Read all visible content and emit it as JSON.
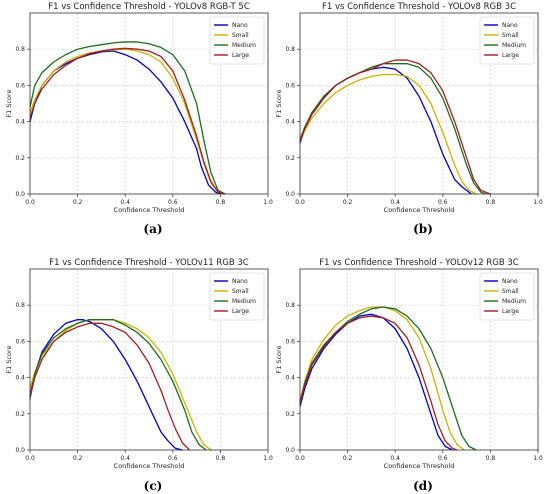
{
  "colors": {
    "Nano": "#0000cc",
    "Small": "#c8b400",
    "Medium": "#1f6b1f",
    "Large": "#a02020"
  },
  "chart_data": [
    {
      "type": "line",
      "title": "F1 vs Confidence Threshold - YOLOv8 RGB-T 5C",
      "xlabel": "Confidence Threshold",
      "ylabel": "F1 Score",
      "xlim": [
        0,
        1
      ],
      "ylim": [
        0,
        1
      ],
      "xticks": [
        "0.0",
        "0.2",
        "0.4",
        "0.6",
        "0.8",
        "1.0"
      ],
      "yticks": [
        "0.0",
        "0.2",
        "0.4",
        "0.6",
        "0.8"
      ],
      "grid": true,
      "legend": "top-right",
      "caption": "(a)",
      "series": [
        {
          "name": "Nano",
          "x": [
            0,
            0.02,
            0.05,
            0.1,
            0.15,
            0.2,
            0.25,
            0.3,
            0.35,
            0.4,
            0.45,
            0.5,
            0.55,
            0.6,
            0.65,
            0.7,
            0.72,
            0.75,
            0.78,
            0.8
          ],
          "y": [
            0.4,
            0.5,
            0.6,
            0.68,
            0.72,
            0.75,
            0.77,
            0.785,
            0.79,
            0.77,
            0.74,
            0.69,
            0.62,
            0.53,
            0.4,
            0.25,
            0.15,
            0.05,
            0.01,
            0
          ]
        },
        {
          "name": "Small",
          "x": [
            0,
            0.02,
            0.05,
            0.1,
            0.15,
            0.2,
            0.25,
            0.3,
            0.35,
            0.4,
            0.45,
            0.5,
            0.55,
            0.6,
            0.65,
            0.7,
            0.73,
            0.76,
            0.79,
            0.82
          ],
          "y": [
            0.45,
            0.52,
            0.6,
            0.68,
            0.73,
            0.76,
            0.78,
            0.79,
            0.795,
            0.8,
            0.79,
            0.77,
            0.73,
            0.64,
            0.5,
            0.3,
            0.17,
            0.06,
            0.01,
            0
          ]
        },
        {
          "name": "Medium",
          "x": [
            0,
            0.02,
            0.05,
            0.1,
            0.15,
            0.2,
            0.25,
            0.3,
            0.35,
            0.4,
            0.45,
            0.5,
            0.55,
            0.6,
            0.65,
            0.7,
            0.73,
            0.76,
            0.79,
            0.82
          ],
          "y": [
            0.48,
            0.6,
            0.67,
            0.73,
            0.77,
            0.8,
            0.815,
            0.825,
            0.835,
            0.84,
            0.84,
            0.83,
            0.81,
            0.77,
            0.68,
            0.5,
            0.3,
            0.12,
            0.02,
            0
          ]
        },
        {
          "name": "Large",
          "x": [
            0,
            0.02,
            0.05,
            0.1,
            0.15,
            0.2,
            0.25,
            0.3,
            0.35,
            0.4,
            0.45,
            0.5,
            0.55,
            0.6,
            0.65,
            0.7,
            0.73,
            0.76,
            0.79,
            0.82
          ],
          "y": [
            0.42,
            0.5,
            0.58,
            0.66,
            0.71,
            0.75,
            0.775,
            0.79,
            0.8,
            0.805,
            0.8,
            0.79,
            0.76,
            0.68,
            0.52,
            0.32,
            0.18,
            0.07,
            0.01,
            0
          ]
        }
      ]
    },
    {
      "type": "line",
      "title": "F1 vs Confidence Threshold - YOLOv8 RGB 3C",
      "xlabel": "Confidence Threshold",
      "ylabel": "F1 Score",
      "xlim": [
        0,
        1
      ],
      "ylim": [
        0,
        1
      ],
      "xticks": [
        "0.0",
        "0.2",
        "0.4",
        "0.6",
        "0.8",
        "1.0"
      ],
      "yticks": [
        "0.0",
        "0.2",
        "0.4",
        "0.6",
        "0.8"
      ],
      "grid": true,
      "legend": "top-right",
      "caption": "(b)",
      "series": [
        {
          "name": "Nano",
          "x": [
            0,
            0.02,
            0.05,
            0.1,
            0.15,
            0.2,
            0.25,
            0.3,
            0.35,
            0.4,
            0.45,
            0.5,
            0.55,
            0.6,
            0.65,
            0.68,
            0.7,
            0.72
          ],
          "y": [
            0.28,
            0.36,
            0.44,
            0.53,
            0.6,
            0.64,
            0.67,
            0.69,
            0.7,
            0.69,
            0.64,
            0.54,
            0.4,
            0.22,
            0.08,
            0.04,
            0.02,
            0
          ]
        },
        {
          "name": "Small",
          "x": [
            0,
            0.02,
            0.05,
            0.1,
            0.15,
            0.2,
            0.25,
            0.3,
            0.35,
            0.4,
            0.45,
            0.5,
            0.55,
            0.6,
            0.65,
            0.68,
            0.71,
            0.74
          ],
          "y": [
            0.29,
            0.35,
            0.42,
            0.5,
            0.56,
            0.6,
            0.63,
            0.65,
            0.66,
            0.66,
            0.65,
            0.6,
            0.5,
            0.34,
            0.16,
            0.07,
            0.02,
            0
          ]
        },
        {
          "name": "Medium",
          "x": [
            0,
            0.02,
            0.05,
            0.1,
            0.15,
            0.2,
            0.25,
            0.3,
            0.35,
            0.4,
            0.45,
            0.5,
            0.55,
            0.6,
            0.65,
            0.7,
            0.73,
            0.76,
            0.78
          ],
          "y": [
            0.3,
            0.37,
            0.45,
            0.54,
            0.6,
            0.64,
            0.67,
            0.7,
            0.72,
            0.72,
            0.72,
            0.7,
            0.64,
            0.53,
            0.36,
            0.16,
            0.06,
            0.01,
            0
          ]
        },
        {
          "name": "Large",
          "x": [
            0,
            0.02,
            0.05,
            0.1,
            0.15,
            0.2,
            0.25,
            0.3,
            0.35,
            0.4,
            0.45,
            0.5,
            0.55,
            0.6,
            0.65,
            0.7,
            0.73,
            0.76,
            0.8
          ],
          "y": [
            0.29,
            0.36,
            0.44,
            0.53,
            0.6,
            0.64,
            0.67,
            0.69,
            0.72,
            0.74,
            0.74,
            0.72,
            0.67,
            0.57,
            0.4,
            0.2,
            0.08,
            0.02,
            0
          ]
        }
      ]
    },
    {
      "type": "line",
      "title": "F1 vs Confidence Threshold - YOLOv11 RGB 3C",
      "xlabel": "Confidence Threshold",
      "ylabel": "F1 Score",
      "xlim": [
        0,
        1
      ],
      "ylim": [
        0,
        1
      ],
      "xticks": [
        "0.0",
        "0.2",
        "0.4",
        "0.6",
        "0.8",
        "1.0"
      ],
      "yticks": [
        "0.0",
        "0.2",
        "0.4",
        "0.6",
        "0.8"
      ],
      "grid": true,
      "legend": "top-right",
      "caption": "(c)",
      "series": [
        {
          "name": "Nano",
          "x": [
            0,
            0.02,
            0.05,
            0.1,
            0.15,
            0.2,
            0.22,
            0.25,
            0.3,
            0.35,
            0.4,
            0.45,
            0.5,
            0.55,
            0.58,
            0.61,
            0.64
          ],
          "y": [
            0.3,
            0.42,
            0.54,
            0.64,
            0.7,
            0.72,
            0.72,
            0.71,
            0.67,
            0.6,
            0.5,
            0.38,
            0.24,
            0.1,
            0.05,
            0.01,
            0
          ]
        },
        {
          "name": "Small",
          "x": [
            0,
            0.02,
            0.05,
            0.1,
            0.15,
            0.2,
            0.25,
            0.3,
            0.35,
            0.4,
            0.45,
            0.5,
            0.55,
            0.6,
            0.65,
            0.7,
            0.73,
            0.76
          ],
          "y": [
            0.34,
            0.43,
            0.52,
            0.6,
            0.66,
            0.7,
            0.72,
            0.72,
            0.72,
            0.7,
            0.67,
            0.62,
            0.54,
            0.42,
            0.26,
            0.1,
            0.03,
            0
          ]
        },
        {
          "name": "Medium",
          "x": [
            0,
            0.02,
            0.05,
            0.1,
            0.15,
            0.2,
            0.25,
            0.3,
            0.35,
            0.4,
            0.45,
            0.5,
            0.55,
            0.6,
            0.65,
            0.68,
            0.71,
            0.74
          ],
          "y": [
            0.28,
            0.42,
            0.53,
            0.62,
            0.67,
            0.7,
            0.72,
            0.72,
            0.72,
            0.69,
            0.65,
            0.59,
            0.5,
            0.38,
            0.22,
            0.1,
            0.03,
            0
          ]
        },
        {
          "name": "Large",
          "x": [
            0,
            0.02,
            0.05,
            0.1,
            0.15,
            0.2,
            0.25,
            0.3,
            0.35,
            0.4,
            0.45,
            0.5,
            0.55,
            0.58,
            0.61,
            0.64,
            0.67
          ],
          "y": [
            0.29,
            0.4,
            0.5,
            0.6,
            0.65,
            0.68,
            0.7,
            0.7,
            0.68,
            0.65,
            0.58,
            0.48,
            0.33,
            0.22,
            0.12,
            0.04,
            0
          ]
        }
      ]
    },
    {
      "type": "line",
      "title": "F1 vs Confidence Threshold - YOLOv12 RGB 3C",
      "xlabel": "Confidence Threshold",
      "ylabel": "F1 Score",
      "xlim": [
        0,
        1
      ],
      "ylim": [
        0,
        1
      ],
      "xticks": [
        "0.0",
        "0.2",
        "0.4",
        "0.6",
        "0.8",
        "1.0"
      ],
      "yticks": [
        "0.0",
        "0.2",
        "0.4",
        "0.6",
        "0.8"
      ],
      "grid": true,
      "legend": "top-right",
      "caption": "(d)",
      "series": [
        {
          "name": "Nano",
          "x": [
            0,
            0.02,
            0.05,
            0.1,
            0.15,
            0.2,
            0.25,
            0.3,
            0.35,
            0.4,
            0.45,
            0.5,
            0.55,
            0.58,
            0.61,
            0.64
          ],
          "y": [
            0.24,
            0.34,
            0.45,
            0.56,
            0.64,
            0.7,
            0.74,
            0.75,
            0.73,
            0.67,
            0.56,
            0.4,
            0.2,
            0.08,
            0.02,
            0
          ]
        },
        {
          "name": "Small",
          "x": [
            0,
            0.02,
            0.05,
            0.1,
            0.15,
            0.2,
            0.25,
            0.3,
            0.35,
            0.4,
            0.45,
            0.5,
            0.55,
            0.6,
            0.63,
            0.66,
            0.69
          ],
          "y": [
            0.27,
            0.38,
            0.5,
            0.61,
            0.69,
            0.74,
            0.77,
            0.79,
            0.79,
            0.77,
            0.72,
            0.62,
            0.45,
            0.22,
            0.1,
            0.03,
            0
          ]
        },
        {
          "name": "Medium",
          "x": [
            0,
            0.02,
            0.05,
            0.1,
            0.15,
            0.2,
            0.25,
            0.3,
            0.35,
            0.4,
            0.45,
            0.5,
            0.55,
            0.6,
            0.65,
            0.68,
            0.71,
            0.74
          ],
          "y": [
            0.26,
            0.37,
            0.48,
            0.58,
            0.65,
            0.71,
            0.75,
            0.78,
            0.79,
            0.78,
            0.74,
            0.67,
            0.56,
            0.4,
            0.2,
            0.08,
            0.02,
            0
          ]
        },
        {
          "name": "Large",
          "x": [
            0,
            0.02,
            0.05,
            0.1,
            0.15,
            0.2,
            0.25,
            0.3,
            0.35,
            0.4,
            0.45,
            0.5,
            0.55,
            0.58,
            0.61,
            0.64,
            0.66
          ],
          "y": [
            0.26,
            0.36,
            0.47,
            0.57,
            0.65,
            0.7,
            0.73,
            0.74,
            0.73,
            0.7,
            0.62,
            0.47,
            0.27,
            0.14,
            0.05,
            0.01,
            0
          ]
        }
      ]
    }
  ]
}
